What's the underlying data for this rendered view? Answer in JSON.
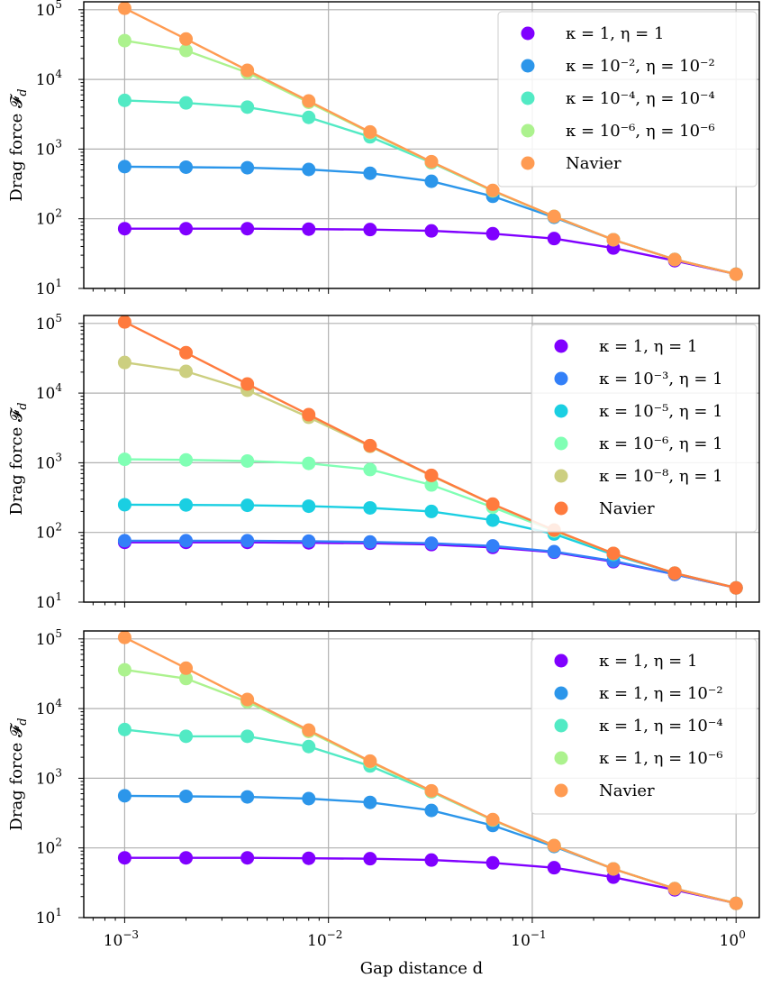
{
  "chart_data": [
    {
      "type": "line",
      "ylabel": "Drag force 𝓕",
      "ylabel_sub": "d",
      "xlabel": "",
      "xscale": "log",
      "yscale": "log",
      "xlim": [
        0.00063,
        1.3
      ],
      "ylim": [
        10,
        130000
      ],
      "grid": true,
      "legend_position": "top-right",
      "x": [
        0.001,
        0.002,
        0.004,
        0.008,
        0.016,
        0.032,
        0.064,
        0.128,
        0.25,
        0.5,
        1.0
      ],
      "xtick_labels": [
        {
          "base": "10",
          "exp": "−3"
        },
        {
          "base": "10",
          "exp": "−2"
        },
        {
          "base": "10",
          "exp": "−1"
        },
        {
          "base": "10",
          "exp": "0"
        }
      ],
      "ytick_labels": [
        {
          "base": "10",
          "exp": "1"
        },
        {
          "base": "10",
          "exp": "2"
        },
        {
          "base": "10",
          "exp": "3"
        },
        {
          "base": "10",
          "exp": "4"
        },
        {
          "base": "10",
          "exp": "5"
        }
      ],
      "series": [
        {
          "name": "κ = 1, η = 1",
          "color": "#8000ff",
          "values": [
            72,
            72,
            72,
            71,
            70,
            67,
            61,
            52,
            38,
            25,
            16
          ]
        },
        {
          "name": "κ = 10⁻², η = 10⁻²",
          "color": "#2c96ea",
          "values": [
            560,
            550,
            540,
            510,
            450,
            345,
            210,
            105,
            50,
            26,
            16
          ]
        },
        {
          "name": "κ = 10⁻⁴, η = 10⁻⁴",
          "color": "#52eac4",
          "values": [
            5000,
            4600,
            4000,
            2850,
            1500,
            640,
            250,
            108,
            50,
            26,
            16
          ]
        },
        {
          "name": "κ = 10⁻⁶, η = 10⁻⁶",
          "color": "#acf28e",
          "values": [
            36000,
            26000,
            12500,
            4700,
            1720,
            650,
            252,
            108,
            50,
            26,
            16
          ]
        },
        {
          "name": "Navier",
          "color": "#ff9b52",
          "values": [
            105000,
            38000,
            13500,
            4900,
            1760,
            660,
            255,
            108,
            50,
            26,
            16
          ]
        }
      ]
    },
    {
      "type": "line",
      "ylabel": "Drag force 𝓕",
      "ylabel_sub": "d",
      "xlabel": "",
      "xscale": "log",
      "yscale": "log",
      "xlim": [
        0.00063,
        1.3
      ],
      "ylim": [
        10,
        130000
      ],
      "grid": true,
      "legend_position": "top-right",
      "x": [
        0.001,
        0.002,
        0.004,
        0.008,
        0.016,
        0.032,
        0.064,
        0.128,
        0.25,
        0.5,
        1.0
      ],
      "xtick_labels": [
        {
          "base": "10",
          "exp": "−3"
        },
        {
          "base": "10",
          "exp": "−2"
        },
        {
          "base": "10",
          "exp": "−1"
        },
        {
          "base": "10",
          "exp": "0"
        }
      ],
      "ytick_labels": [
        {
          "base": "10",
          "exp": "1"
        },
        {
          "base": "10",
          "exp": "2"
        },
        {
          "base": "10",
          "exp": "3"
        },
        {
          "base": "10",
          "exp": "4"
        },
        {
          "base": "10",
          "exp": "5"
        }
      ],
      "series": [
        {
          "name": "κ = 1, η = 1",
          "color": "#8000ff",
          "values": [
            72,
            72,
            72,
            71,
            70,
            67,
            61,
            52,
            38,
            25,
            16
          ]
        },
        {
          "name": "κ = 10⁻³, η = 1",
          "color": "#3380f8",
          "values": [
            76,
            76,
            76,
            75,
            73,
            70,
            64,
            53,
            39,
            25,
            16
          ]
        },
        {
          "name": "κ = 10⁻⁵, η = 1",
          "color": "#1acfe2",
          "values": [
            250,
            248,
            245,
            238,
            225,
            200,
            150,
            95,
            48,
            26,
            16
          ]
        },
        {
          "name": "κ = 10⁻⁶, η = 1",
          "color": "#80ffb4",
          "values": [
            1120,
            1100,
            1060,
            980,
            800,
            480,
            230,
            105,
            50,
            26,
            16
          ]
        },
        {
          "name": "κ = 10⁻⁸, η = 1",
          "color": "#cccf80",
          "values": [
            27500,
            20500,
            11000,
            4500,
            1720,
            650,
            252,
            108,
            50,
            26,
            16
          ]
        },
        {
          "name": "Navier",
          "color": "#ff7b3e",
          "values": [
            105000,
            38000,
            13500,
            4900,
            1760,
            660,
            255,
            108,
            50,
            26,
            16
          ]
        }
      ]
    },
    {
      "type": "line",
      "ylabel": "Drag force 𝓕",
      "ylabel_sub": "d",
      "xlabel": "Gap distance d",
      "xscale": "log",
      "yscale": "log",
      "xlim": [
        0.00063,
        1.3
      ],
      "ylim": [
        10,
        130000
      ],
      "grid": true,
      "legend_position": "top-right",
      "x": [
        0.001,
        0.002,
        0.004,
        0.008,
        0.016,
        0.032,
        0.064,
        0.128,
        0.25,
        0.5,
        1.0
      ],
      "xtick_labels": [
        {
          "base": "10",
          "exp": "−3"
        },
        {
          "base": "10",
          "exp": "−2"
        },
        {
          "base": "10",
          "exp": "−1"
        },
        {
          "base": "10",
          "exp": "0"
        }
      ],
      "ytick_labels": [
        {
          "base": "10",
          "exp": "1"
        },
        {
          "base": "10",
          "exp": "2"
        },
        {
          "base": "10",
          "exp": "3"
        },
        {
          "base": "10",
          "exp": "4"
        },
        {
          "base": "10",
          "exp": "5"
        }
      ],
      "series": [
        {
          "name": "κ = 1, η = 1",
          "color": "#8000ff",
          "values": [
            72,
            72,
            72,
            71,
            70,
            67,
            61,
            52,
            38,
            25,
            16
          ]
        },
        {
          "name": "κ = 1, η = 10⁻²",
          "color": "#2c96ea",
          "values": [
            560,
            550,
            540,
            510,
            450,
            345,
            210,
            105,
            50,
            26,
            16
          ]
        },
        {
          "name": "κ = 1, η = 10⁻⁴",
          "color": "#52eac4",
          "values": [
            5000,
            4000,
            4000,
            2850,
            1500,
            640,
            250,
            108,
            50,
            26,
            16
          ]
        },
        {
          "name": "κ = 1, η = 10⁻⁶",
          "color": "#acf28e",
          "values": [
            36000,
            27000,
            12500,
            4700,
            1720,
            650,
            252,
            108,
            50,
            26,
            16
          ]
        },
        {
          "name": "Navier",
          "color": "#ff9b52",
          "values": [
            105000,
            38000,
            13500,
            4900,
            1760,
            660,
            255,
            108,
            50,
            26,
            16
          ]
        }
      ]
    }
  ]
}
